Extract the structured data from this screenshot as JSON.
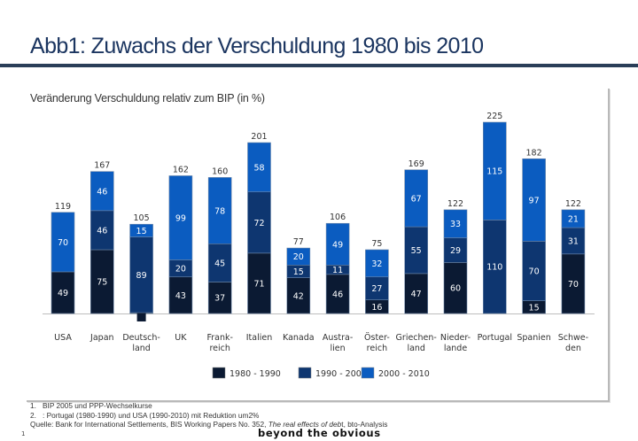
{
  "header": {
    "title": "Abb1: Zuwachs der Verschuldung 1980 bis 2010"
  },
  "chart_data": {
    "type": "bar",
    "stacked": true,
    "title": "Veränderung Verschuldung relativ zum BIP (in %)",
    "xlabel": "",
    "ylabel": "",
    "ylim": [
      0,
      230
    ],
    "grid": false,
    "legend_position": "bottom",
    "categories": [
      [
        "USA"
      ],
      [
        "Japan"
      ],
      [
        "Deutsch-",
        "land"
      ],
      [
        "UK"
      ],
      [
        "Frank-",
        "reich"
      ],
      [
        "Italien"
      ],
      [
        "Kanada"
      ],
      [
        "Austra-",
        "lien"
      ],
      [
        "Öster-",
        "reich"
      ],
      [
        "Griechen-",
        "land"
      ],
      [
        "Nieder-",
        "lande"
      ],
      [
        "Portugal"
      ],
      [
        "Spanien"
      ],
      [
        "Schwe-",
        "den"
      ]
    ],
    "series": [
      {
        "name": "1980 - 1990",
        "color": "#0b1a33",
        "values": [
          49,
          75,
          1,
          43,
          37,
          71,
          42,
          46,
          16,
          47,
          60,
          null,
          15,
          70
        ]
      },
      {
        "name": "1990 - 2000",
        "color": "#0e3670",
        "values": [
          null,
          46,
          89,
          20,
          45,
          72,
          15,
          11,
          27,
          55,
          29,
          110,
          70,
          31
        ]
      },
      {
        "name": "2000 - 2010",
        "color": "#0b5cc0",
        "values": [
          70,
          46,
          15,
          99,
          78,
          58,
          20,
          49,
          32,
          67,
          33,
          115,
          97,
          21
        ]
      }
    ],
    "totals": [
      119,
      167,
      105,
      162,
      160,
      201,
      77,
      106,
      75,
      169,
      122,
      225,
      182,
      122
    ]
  },
  "footnotes": {
    "items": [
      {
        "num": "1.",
        "text": "BIP 2005 und PPP-Wechselkurse"
      },
      {
        "num": "2.",
        "text": ": Portugal (1980-1990) und USA (1990-2010) mit Reduktion um2%"
      }
    ],
    "source_prefix": "Quelle: Bank for International Settlements, BIS Working Papers No. 352, ",
    "source_italic": "The real effects of deb",
    "source_suffix": "t, bto-Analysis"
  },
  "footer": {
    "page_number": "1",
    "brand": "beyond the obvious"
  }
}
